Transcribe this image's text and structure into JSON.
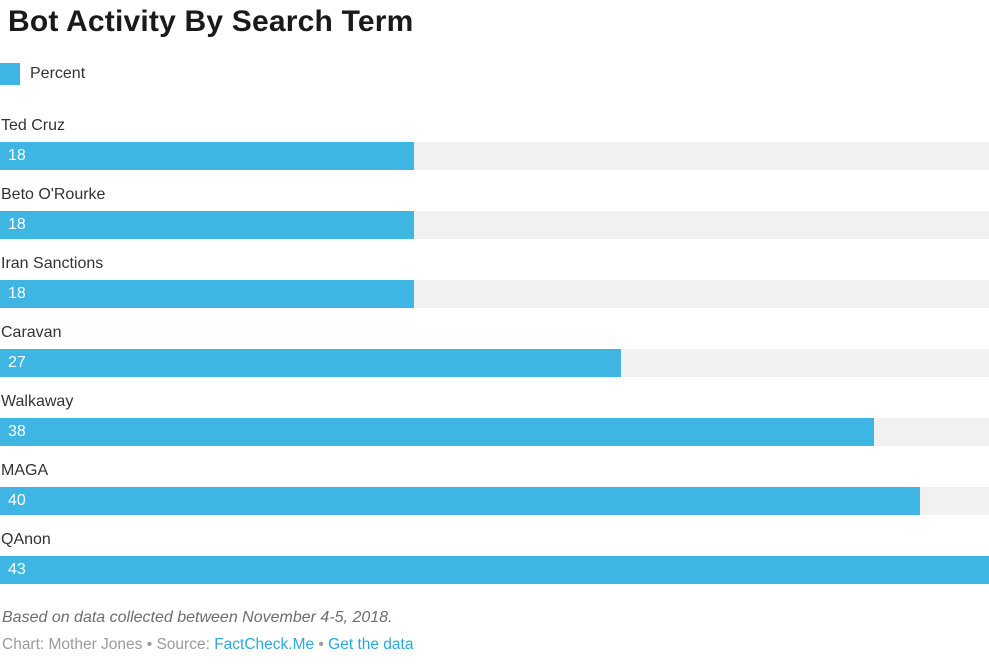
{
  "chart_data": {
    "type": "bar",
    "orientation": "horizontal",
    "title": "Bot Activity By Search Term",
    "legend": {
      "label": "Percent"
    },
    "categories": [
      "Ted Cruz",
      "Beto O'Rourke",
      "Iran Sanctions",
      "Caravan",
      "Walkaway",
      "MAGA",
      "QAnon"
    ],
    "values": [
      18,
      18,
      18,
      27,
      38,
      40,
      43
    ],
    "xlim": [
      0,
      43
    ],
    "value_labels": [
      "18",
      "18",
      "18",
      "27",
      "38",
      "40",
      "43"
    ],
    "grid": false,
    "legend_position": "top-left"
  },
  "footer": {
    "note": "Based on data collected between November 4-5, 2018.",
    "credit_prefix": "Chart: Mother Jones • Source: ",
    "source_link_label": "FactCheck.Me",
    "separator": " • ",
    "data_link_label": "Get the data"
  },
  "colors": {
    "bar": "#3eb5e3",
    "track": "#f1f1f2",
    "link": "#29a9e0",
    "title_text": "#1a1a1a",
    "label_text": "#333333",
    "note_text": "#6d6d6d",
    "credit_text": "#9b9b9b"
  }
}
